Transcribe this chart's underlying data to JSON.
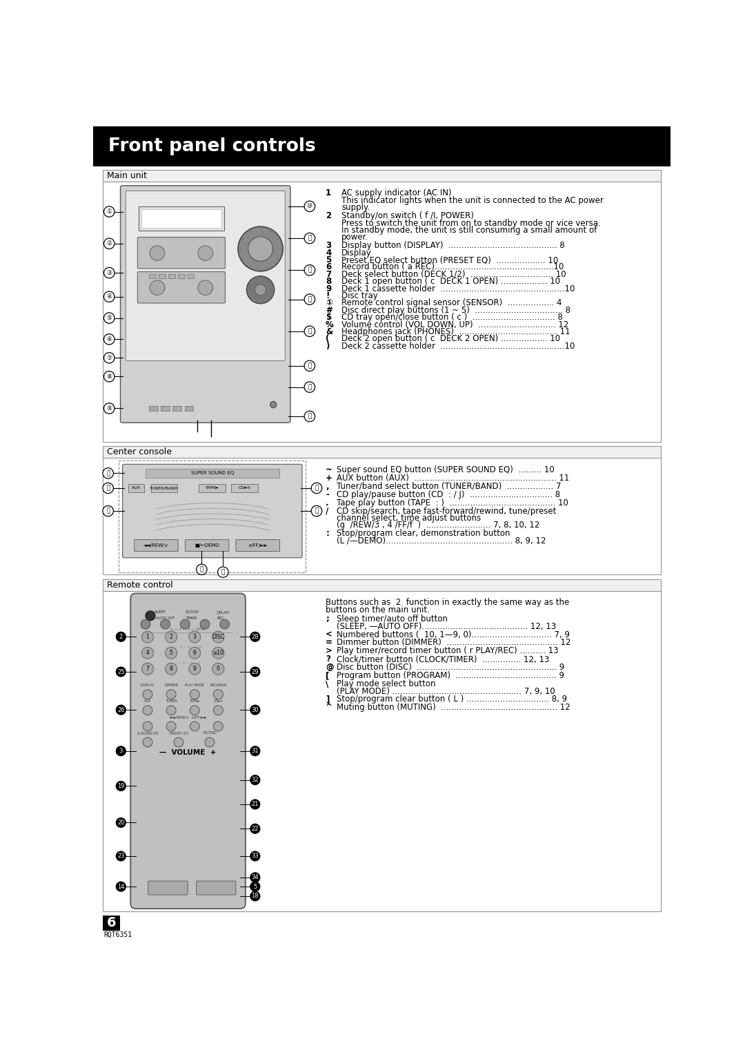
{
  "title": "Front panel controls",
  "bg_color": "#ffffff",
  "header_bg": "#000000",
  "header_text_color": "#ffffff",
  "page_number": "6",
  "model_code": "RQT6351",
  "main_unit_items": [
    [
      "1",
      "AC supply indicator (AC IN)",
      "This indicator lights when the unit is connected to the AC power\nsupply."
    ],
    [
      "2",
      "Standby/on switch ( f /I, POWER)",
      "Press to switch the unit from on to standby mode or vice versa.\nIn standby mode, the unit is still consuming a small amount of\npower."
    ],
    [
      "3",
      "Display button (DISPLAY)  .......................................... 8"
    ],
    [
      "4",
      "Display"
    ],
    [
      "5",
      "Preset EQ select button (PRESET EQ)  ................... 10"
    ],
    [
      "6",
      "Record button ( a REC)..............................................10"
    ],
    [
      "7",
      "Deck select button (DECK 1/2)  ................................ 10"
    ],
    [
      "8",
      "Deck 1 open button ( c  DECK 1 OPEN) .................. 10"
    ],
    [
      "9",
      "Deck 1 cassette holder  ................................................10"
    ],
    [
      "!",
      "Disc tray"
    ],
    [
      "①",
      "Remote control signal sensor (SENSOR)  .................. 4"
    ],
    [
      "#",
      "Disc direct play buttons (1 ~ 5)  .................................. 8"
    ],
    [
      "$",
      "CD tray open/close button ( c )  ................................ 8"
    ],
    [
      "%",
      "Volume control (VOL DOWN, UP)  .............................. 12"
    ],
    [
      "&",
      "Headphones jack (PHONES)  ...................................... 11"
    ],
    [
      "(",
      "Deck 2 open button ( c  DECK 2 OPEN) .................. 10"
    ],
    [
      ")",
      "Deck 2 cassette holder  ................................................10"
    ]
  ],
  "center_console_items": [
    [
      "~",
      "Super sound EQ button (SUPER SOUND EQ)  ......... 10"
    ],
    [
      "+",
      "AUX button (AUX)  ....................................................... 11"
    ],
    [
      ",",
      "Tuner/band select button (TUNER/BAND)  .................. 7"
    ],
    [
      "-",
      "CD play/pause button (CD  : / J)  ................................ 8"
    ],
    [
      ".",
      "Tape play button (TAPE  : )  ......................................... 10"
    ],
    [
      "/",
      "CD skip/search, tape fast-forward/rewind, tune/preset\nchannel select, time adjust buttons\n(g  /REW/3 , 4 /FF/f  )  ......................... 7, 8, 10, 12"
    ],
    [
      ":",
      "Stop/program clear, demonstration button\n(L /—DEMO)................................................. 8, 9, 12"
    ]
  ],
  "remote_intro_lines": [
    "Buttons such as  2  function in exactly the same way as the",
    "buttons on the main unit."
  ],
  "remote_control_items": [
    [
      ";",
      "Sleep timer/auto off button\n(SLEEP, —AUTO OFF)......................................... 12, 13"
    ],
    [
      "<",
      "Numbered buttons (  10, 1—9, 0)............................... 7, 9"
    ],
    [
      "=",
      "Dimmer button (DIMMER)  ........................................... 12"
    ],
    [
      ">",
      "Play timer/record timer button ( r PLAY/REC) .......... 13"
    ],
    [
      "?",
      "Clock/timer button (CLOCK/TIMER)  ............... 12, 13"
    ],
    [
      "@",
      "Disc button (DISC)  ...................................................... 9"
    ],
    [
      "[",
      "Program button (PROGRAM)  ....................................... 9"
    ],
    [
      "\\",
      "Play mode select button\n(PLAY MODE) .................................................. 7, 9, 10"
    ],
    [
      "]",
      "Stop/program clear button ( L ) ................................ 8, 9"
    ],
    [
      "^",
      "Muting button (MUTING)  ............................................. 12"
    ]
  ]
}
